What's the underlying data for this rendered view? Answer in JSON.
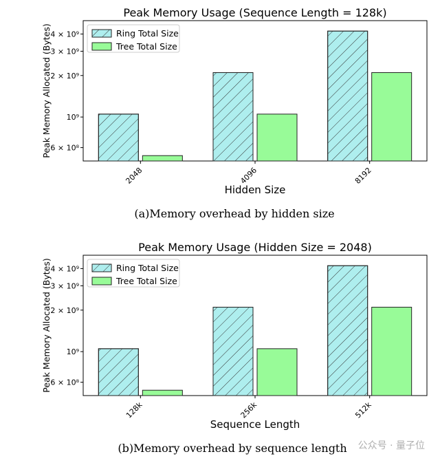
{
  "chart_data": [
    {
      "type": "bar",
      "title": "Peak Memory Usage (Sequence Length = 128k)",
      "xlabel": "Hidden Size",
      "ylabel": "Peak Memory Allocated (Bytes)",
      "yscale": "log",
      "ylim": [
        480000000,
        5000000000
      ],
      "yticks": [
        {
          "value": 600000000,
          "label": "6 × 10⁸"
        },
        {
          "value": 1000000000,
          "label": "10⁹"
        },
        {
          "value": 2000000000,
          "label": "2 × 10⁹"
        },
        {
          "value": 3000000000,
          "label": "3 × 10⁹"
        },
        {
          "value": 4000000000,
          "label": "4 × 10⁹"
        }
      ],
      "categories": [
        "2048",
        "4096",
        "8192"
      ],
      "series": [
        {
          "name": "Ring Total Size",
          "values": [
            1050000000,
            2100000000,
            4200000000
          ],
          "color": "#aeeeee",
          "hatch": "diagonal"
        },
        {
          "name": "Tree Total Size",
          "values": [
            525000000,
            1050000000,
            2100000000
          ],
          "color": "#98fb98",
          "hatch": "none"
        }
      ],
      "legend": "top-left",
      "caption": "(a)Memory overhead by hidden size"
    },
    {
      "type": "bar",
      "title": "Peak Memory Usage (Hidden Size = 2048)",
      "xlabel": "Sequence Length",
      "ylabel": "Peak Memory Allocated (Bytes)",
      "yscale": "log",
      "ylim": [
        480000000,
        5000000000
      ],
      "yticks": [
        {
          "value": 600000000,
          "label": "6 × 10⁸"
        },
        {
          "value": 1000000000,
          "label": "10⁹"
        },
        {
          "value": 2000000000,
          "label": "2 × 10⁹"
        },
        {
          "value": 3000000000,
          "label": "3 × 10⁹"
        },
        {
          "value": 4000000000,
          "label": "4 × 10⁹"
        }
      ],
      "categories": [
        "128k",
        "256k",
        "512k"
      ],
      "series": [
        {
          "name": "Ring Total Size",
          "values": [
            1050000000,
            2100000000,
            4200000000
          ],
          "color": "#aeeeee",
          "hatch": "diagonal"
        },
        {
          "name": "Tree Total Size",
          "values": [
            525000000,
            1050000000,
            2100000000
          ],
          "color": "#98fb98",
          "hatch": "none"
        }
      ],
      "legend": "top-left",
      "caption": "(b)Memory overhead by sequence length"
    }
  ],
  "watermark": "公众号 · 量子位"
}
